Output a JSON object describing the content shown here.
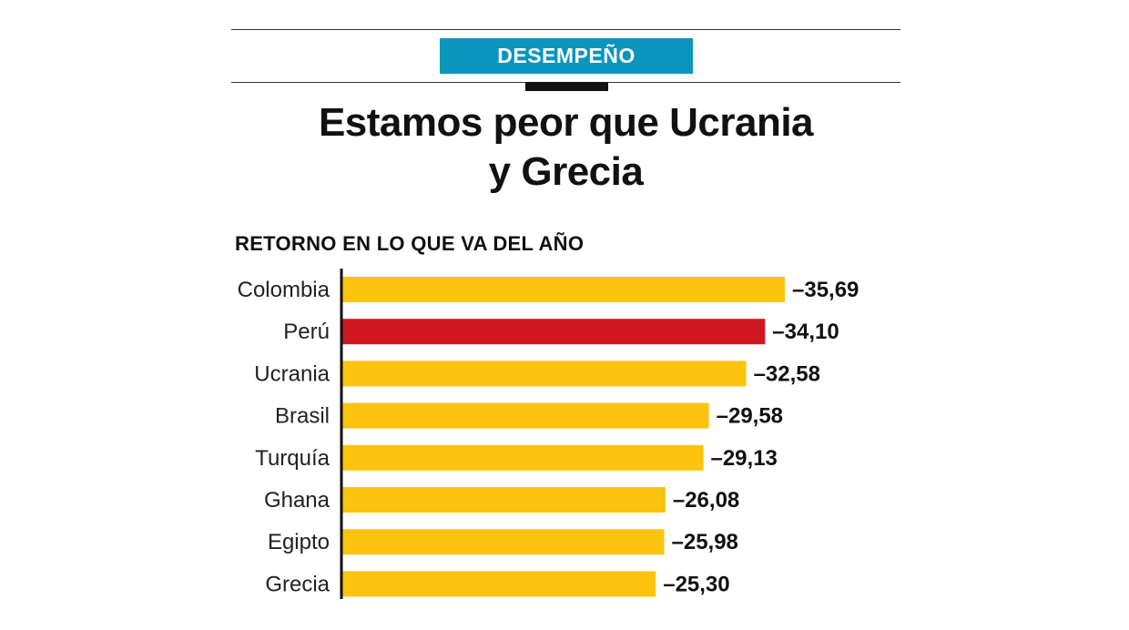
{
  "header": {
    "tag": "DESEMPEÑO"
  },
  "headline": {
    "line1": "Estamos peor que Ucrania",
    "line2": "y Grecia"
  },
  "chart_data": {
    "type": "bar",
    "orientation": "horizontal",
    "title": "RETORNO EN LO QUE VA DEL AÑO",
    "categories": [
      "Colombia",
      "Perú",
      "Ucrania",
      "Brasil",
      "Turquía",
      "Ghana",
      "Egipto",
      "Grecia"
    ],
    "values": [
      -35.69,
      -34.1,
      -32.58,
      -29.58,
      -29.13,
      -26.08,
      -25.98,
      -25.3
    ],
    "value_labels": [
      "–35,69",
      "–34,10",
      "–32,58",
      "–29,58",
      "–29,13",
      "–26,08",
      "–25,98",
      "–25,30"
    ],
    "highlight": "Perú",
    "colors": {
      "bar": "#fcc30f",
      "highlight": "#d0171f",
      "axis": "#111111"
    },
    "xlim": [
      0,
      -40
    ],
    "grid": false,
    "legend": false
  }
}
